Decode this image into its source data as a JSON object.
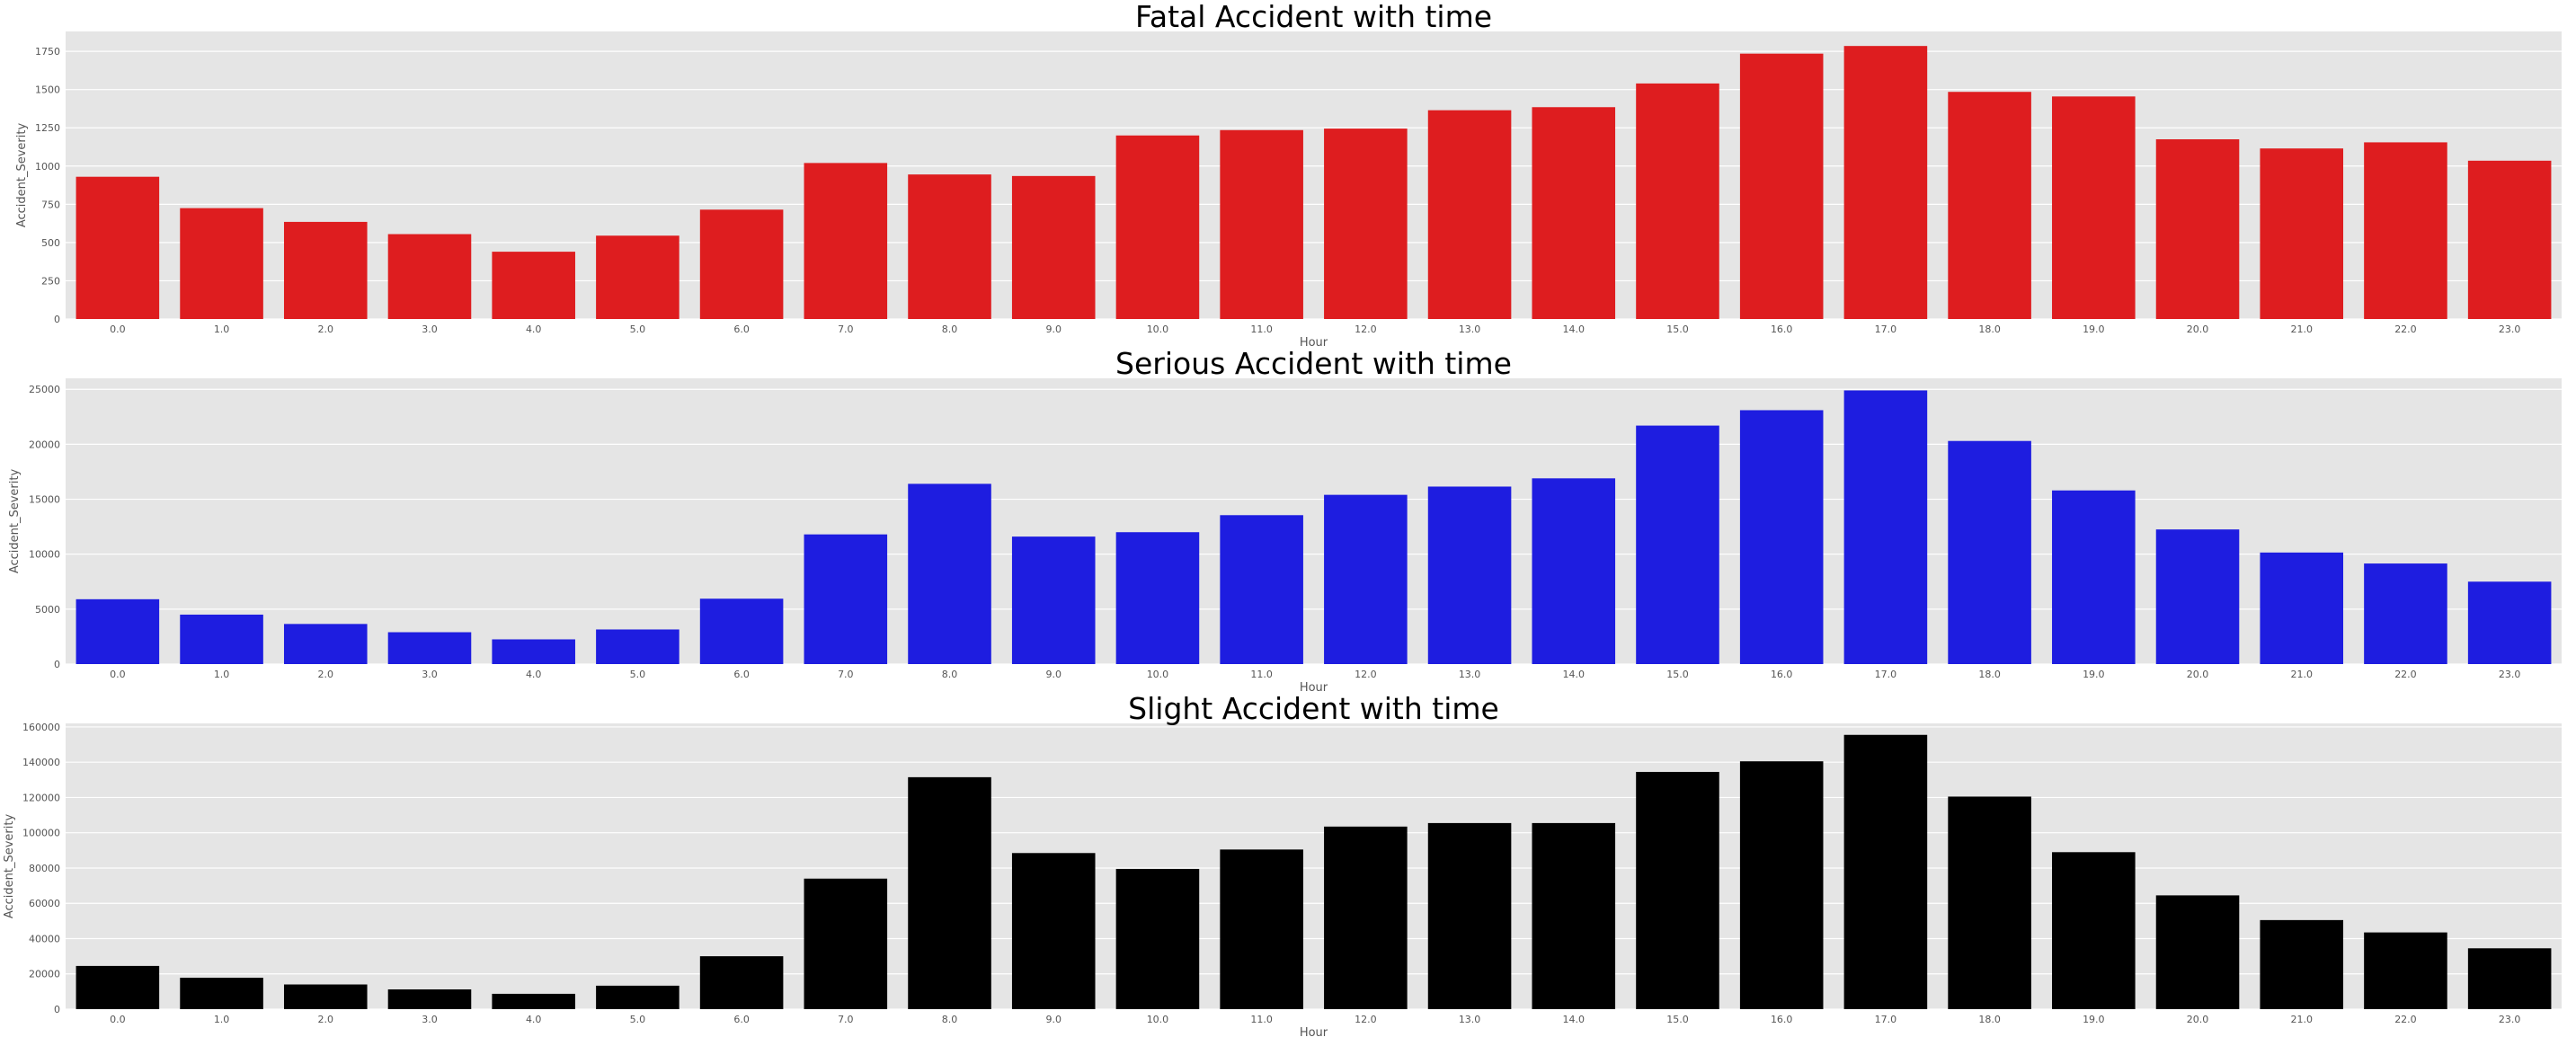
{
  "chart_data": [
    {
      "type": "bar",
      "title": "Fatal Accident with time",
      "xlabel": "Hour",
      "ylabel": "Accident_Severity",
      "color": "#de1d1f",
      "ylim": [
        0,
        1880
      ],
      "yticks": [
        0,
        250,
        500,
        750,
        1000,
        1250,
        1500,
        1750
      ],
      "categories": [
        "0.0",
        "1.0",
        "2.0",
        "3.0",
        "4.0",
        "5.0",
        "6.0",
        "7.0",
        "8.0",
        "9.0",
        "10.0",
        "11.0",
        "12.0",
        "13.0",
        "14.0",
        "15.0",
        "16.0",
        "17.0",
        "18.0",
        "19.0",
        "20.0",
        "21.0",
        "22.0",
        "23.0"
      ],
      "values": [
        930,
        725,
        635,
        555,
        440,
        545,
        715,
        1020,
        945,
        935,
        1200,
        1235,
        1245,
        1365,
        1385,
        1540,
        1735,
        1785,
        1485,
        1455,
        1175,
        1115,
        1155,
        1035
      ],
      "grid": true
    },
    {
      "type": "bar",
      "title": "Serious Accident with time",
      "xlabel": "Hour",
      "ylabel": "Accident_Severity",
      "color": "#1e1de0",
      "ylim": [
        0,
        26000
      ],
      "yticks": [
        0,
        5000,
        10000,
        15000,
        20000,
        25000
      ],
      "categories": [
        "0.0",
        "1.0",
        "2.0",
        "3.0",
        "4.0",
        "5.0",
        "6.0",
        "7.0",
        "8.0",
        "9.0",
        "10.0",
        "11.0",
        "12.0",
        "13.0",
        "14.0",
        "15.0",
        "16.0",
        "17.0",
        "18.0",
        "19.0",
        "20.0",
        "21.0",
        "22.0",
        "23.0"
      ],
      "values": [
        5900,
        4500,
        3650,
        2900,
        2250,
        3150,
        5950,
        11800,
        16400,
        11600,
        12000,
        13550,
        15400,
        16150,
        16900,
        21700,
        23100,
        24900,
        20300,
        15800,
        12250,
        10150,
        9150,
        7500
      ],
      "grid": true
    },
    {
      "type": "bar",
      "title": "Slight Accident with time",
      "xlabel": "Hour",
      "ylabel": "Accident_Severity",
      "color": "#000000",
      "ylim": [
        0,
        162000
      ],
      "yticks": [
        0,
        20000,
        40000,
        60000,
        80000,
        100000,
        120000,
        140000,
        160000
      ],
      "categories": [
        "0.0",
        "1.0",
        "2.0",
        "3.0",
        "4.0",
        "5.0",
        "6.0",
        "7.0",
        "8.0",
        "9.0",
        "10.0",
        "11.0",
        "12.0",
        "13.0",
        "14.0",
        "15.0",
        "16.0",
        "17.0",
        "18.0",
        "19.0",
        "20.0",
        "21.0",
        "22.0",
        "23.0"
      ],
      "values": [
        24500,
        17800,
        14000,
        11200,
        8700,
        13300,
        30000,
        74000,
        131500,
        88500,
        79500,
        90500,
        103500,
        105500,
        105500,
        134500,
        140500,
        155500,
        120500,
        89000,
        64500,
        50500,
        43500,
        34500
      ],
      "grid": true
    }
  ]
}
